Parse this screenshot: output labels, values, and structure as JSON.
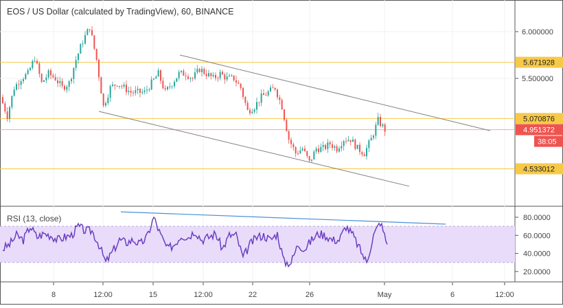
{
  "header": {
    "title": "EOS / US Dollar (calculated by TradingView), 60, BINANCE"
  },
  "rsi_title": "RSI (13, close)",
  "countdown": "38:05",
  "colors": {
    "up": "#26a69a",
    "down": "#ef5350",
    "level": "#f7c948",
    "current": "#ef5350",
    "channel": "#808080",
    "rsi": "#6a3fc0",
    "rsi_band": "#e9dcfb",
    "rsi_trend": "#4a90d9"
  },
  "chart_data": [
    {
      "type": "candlestick",
      "title": "EOS / US Dollar (calculated by TradingView), 60, BINANCE",
      "ylim": [
        4.2,
        6.3
      ],
      "y_ticks": [
        "6.000000",
        "5.500000"
      ],
      "x_ticks": [
        "8",
        "12:00",
        "15",
        "12:00",
        "22",
        "26",
        "May",
        "6",
        "12:00"
      ],
      "close_sampled_12h": [
        5.3,
        5.1,
        5.4,
        5.5,
        5.55,
        5.72,
        5.45,
        5.55,
        5.5,
        5.4,
        5.45,
        5.7,
        5.9,
        6.05,
        5.7,
        5.2,
        5.4,
        5.45,
        5.4,
        5.35,
        5.35,
        5.35,
        5.45,
        5.55,
        5.35,
        5.45,
        5.55,
        5.55,
        5.5,
        5.6,
        5.55,
        5.5,
        5.55,
        5.5,
        5.5,
        5.4,
        5.15,
        5.2,
        5.3,
        5.35,
        5.4,
        5.2,
        4.85,
        4.7,
        4.75,
        4.6,
        4.75,
        4.75,
        4.8,
        4.75,
        4.85,
        4.85,
        4.75,
        4.7,
        4.85,
        5.05,
        4.95
      ],
      "levels": [
        {
          "value": 5.671928,
          "label": "5.671928"
        },
        {
          "value": 5.070876,
          "label": "5.070876"
        },
        {
          "value": 4.533012,
          "label": "4.533012"
        }
      ],
      "current_price": {
        "value": 4.951372,
        "label": "4.951372"
      },
      "channel": {
        "upper": [
          [
            25.8,
            5.75
          ],
          [
            71,
            4.94
          ]
        ],
        "lower": [
          [
            14,
            5.147
          ],
          [
            59.2,
            4.346
          ]
        ]
      }
    },
    {
      "type": "line",
      "title": "RSI (13, close)",
      "ylim": [
        10,
        90
      ],
      "y_ticks": [
        "80.0000",
        "60.0000",
        "40.0000",
        "20.0000"
      ],
      "band": [
        30,
        70
      ],
      "values": [
        45,
        50,
        60,
        55,
        70,
        58,
        62,
        60,
        55,
        58,
        60,
        70,
        65,
        65,
        50,
        30,
        42,
        55,
        52,
        55,
        50,
        58,
        80,
        60,
        45,
        50,
        60,
        58,
        65,
        55,
        58,
        62,
        45,
        60,
        60,
        35,
        50,
        58,
        60,
        55,
        62,
        30,
        30,
        50,
        45,
        55,
        62,
        60,
        55,
        55,
        70,
        60,
        45,
        30,
        60,
        75,
        50
      ],
      "trendline": [
        [
          17.2,
          86
        ],
        [
          64.5,
          72.4
        ]
      ]
    }
  ]
}
